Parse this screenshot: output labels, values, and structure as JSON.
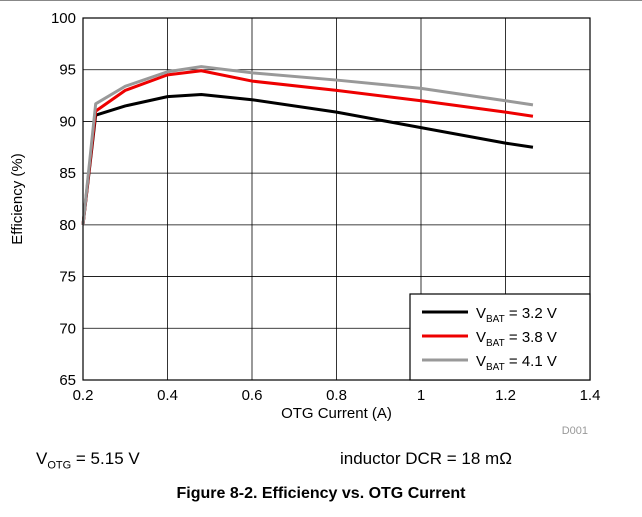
{
  "chart_data": {
    "type": "line",
    "xlabel": "OTG Current (A)",
    "ylabel": "Efficiency (%)",
    "xlim": [
      0.2,
      1.4
    ],
    "ylim": [
      65,
      100
    ],
    "xticks": [
      "0.2",
      "0.4",
      "0.6",
      "0.8",
      "1",
      "1.2",
      "1.4"
    ],
    "yticks": [
      "65",
      "70",
      "75",
      "80",
      "85",
      "90",
      "95",
      "100"
    ],
    "grid": true,
    "legend_position": "bottom-right",
    "figure_id": "D001",
    "series": [
      {
        "name_main": "V",
        "name_sub": "BAT",
        "name_rest": " = 3.2 V",
        "color": "#000000",
        "x": [
          0.2,
          0.23,
          0.3,
          0.4,
          0.48,
          0.6,
          0.8,
          1.0,
          1.2,
          1.265
        ],
        "y": [
          80.0,
          90.6,
          91.5,
          92.4,
          92.6,
          92.1,
          90.9,
          89.4,
          87.9,
          87.5
        ]
      },
      {
        "name_main": "V",
        "name_sub": "BAT",
        "name_rest": " = 3.8 V",
        "color": "#ee0000",
        "x": [
          0.2,
          0.23,
          0.3,
          0.4,
          0.48,
          0.6,
          0.8,
          1.0,
          1.2,
          1.265
        ],
        "y": [
          80.0,
          91.0,
          93.0,
          94.5,
          94.9,
          93.9,
          93.0,
          92.0,
          90.9,
          90.5
        ]
      },
      {
        "name_main": "V",
        "name_sub": "BAT",
        "name_rest": " = 4.1 V",
        "color": "#999999",
        "x": [
          0.2,
          0.23,
          0.3,
          0.4,
          0.48,
          0.6,
          0.8,
          1.0,
          1.2,
          1.265
        ],
        "y": [
          80.0,
          91.7,
          93.4,
          94.8,
          95.3,
          94.7,
          94.0,
          93.2,
          92.0,
          91.6
        ]
      }
    ]
  },
  "notes": {
    "left_main": "V",
    "left_sub": "OTG",
    "left_rest": " = 5.15 V",
    "right": "inductor DCR = 18 mΩ"
  },
  "caption": "Figure 8-2. Efficiency vs. OTG Current"
}
